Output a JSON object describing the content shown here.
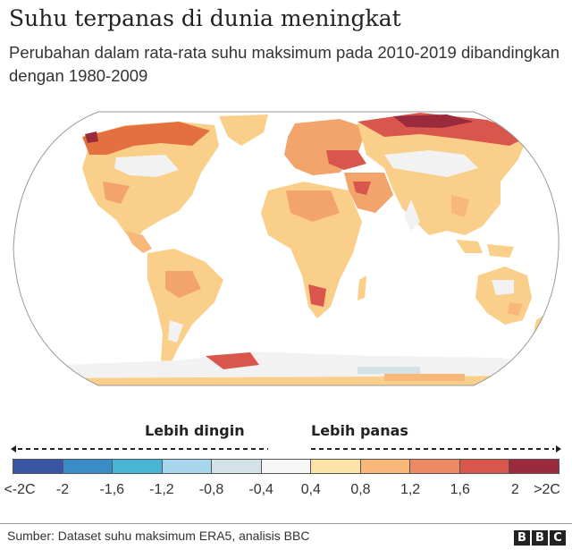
{
  "header": {
    "title": "Suhu terpanas di dunia meningkat",
    "subtitle": "Perubahan dalam rata-rata suhu maksimum pada 2010-2019 dibandingkan dengan 1980-2009"
  },
  "map": {
    "projection": "world-robinson",
    "description": "Choropleth world map of change in average maximum temperature, 2010-2019 vs 1980-2009",
    "highlights": [
      {
        "region": "Arctic Russia / Siberia",
        "level": ">2C"
      },
      {
        "region": "Alaska",
        "level": ">2C"
      },
      {
        "region": "Eastern Europe / Black Sea",
        "level": "1.6-2"
      },
      {
        "region": "Middle East",
        "level": "1.6-2"
      },
      {
        "region": "Southern Africa",
        "level": "1.6-2"
      },
      {
        "region": "Central US / Canada interior",
        "level": "-0.4-0.4"
      },
      {
        "region": "Antarctica interior",
        "level": "-0.8-0.4"
      }
    ]
  },
  "legend": {
    "cooler_label": "Lebih dingin",
    "warmer_label": "Lebih panas",
    "colors": [
      "#3a55a4",
      "#3a8cc8",
      "#46b6d4",
      "#a6d5ec",
      "#d4e1e6",
      "#f6f6f6",
      "#fbe2a6",
      "#f7b87a",
      "#ee8a63",
      "#d9564c",
      "#9a2a3c"
    ],
    "ticks": [
      "<-2C",
      "-2",
      "-1,6",
      "-1,2",
      "-0,8",
      "-0,4",
      "0,4",
      "0,8",
      "1,2",
      "1,6",
      "2",
      ">2C"
    ]
  },
  "chart_data": {
    "type": "heatmap",
    "title": "Suhu terpanas di dunia meningkat",
    "subtitle": "Perubahan dalam rata-rata suhu maksimum pada 2010-2019 dibandingkan dengan 1980-2009",
    "legend": {
      "bins": [
        "<-2",
        "-2 to -1,6",
        "-1,6 to -1,2",
        "-1,2 to -0,8",
        "-0,8 to -0,4",
        "-0,4 to 0,4",
        "0,4 to 0,8",
        "0,8 to 1,2",
        "1,2 to 1,6",
        "1,6 to 2",
        ">2"
      ],
      "unit": "C",
      "cooler": "Lebih dingin",
      "warmer": "Lebih panas"
    }
  },
  "footer": {
    "source": "Sumber: Dataset suhu maksimum ERA5, analisis BBC",
    "logo_letters": [
      "B",
      "B",
      "C"
    ]
  }
}
